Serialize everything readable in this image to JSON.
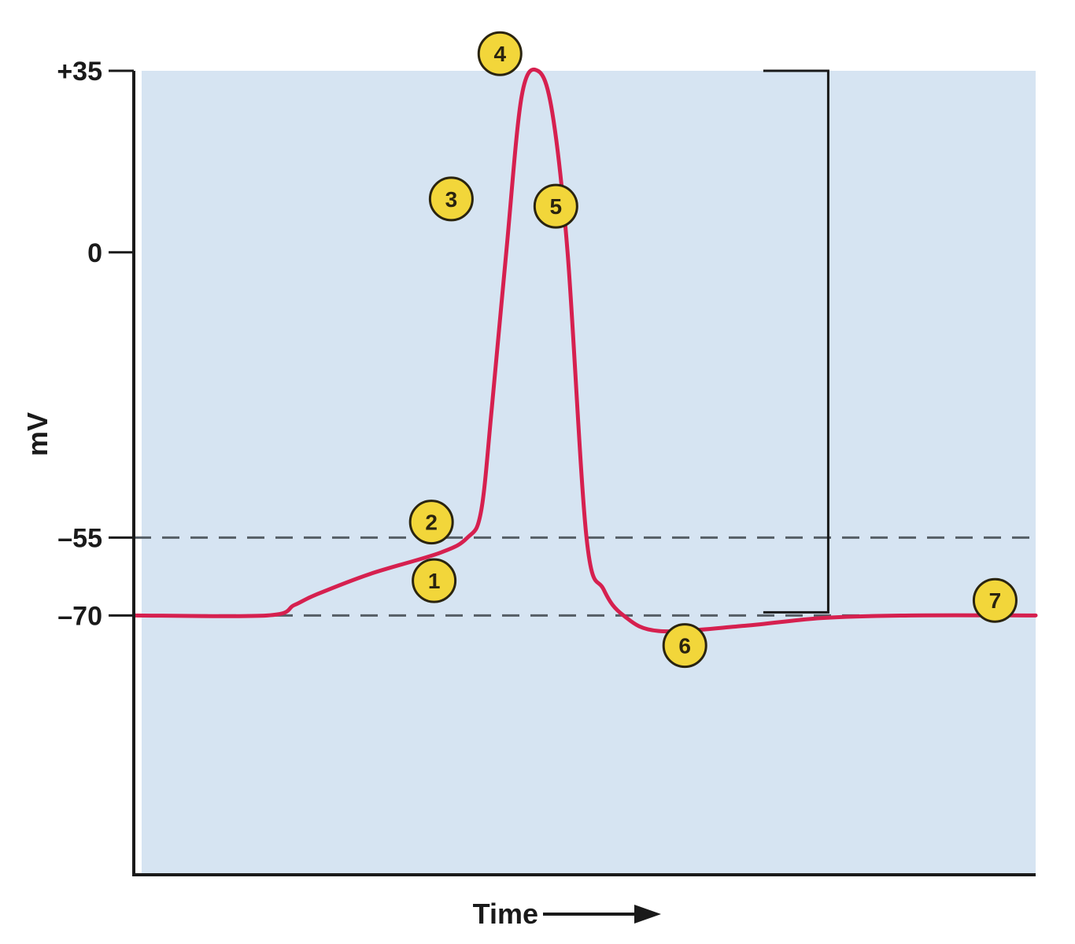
{
  "chart_data": {
    "type": "line",
    "xlabel": "Time",
    "ylabel": "mV",
    "x_axis_arrow": true,
    "ylim": [
      -120,
      35
    ],
    "xlim": [
      0,
      100
    ],
    "y_ticks": [
      {
        "value": 35,
        "label": "+35"
      },
      {
        "value": 0,
        "label": "0"
      },
      {
        "value": -55,
        "label": "–55"
      },
      {
        "value": -70,
        "label": "–70"
      }
    ],
    "reference_lines": [
      {
        "value": -55,
        "style": "dashed"
      },
      {
        "value": -70,
        "style": "dashed"
      }
    ],
    "grid": false,
    "legend": "none",
    "series": [
      {
        "color": "#d6204f",
        "points": [
          {
            "x": 0,
            "y": -70
          },
          {
            "x": 14.8,
            "y": -70
          },
          {
            "x": 17.8,
            "y": -68
          },
          {
            "x": 20.2,
            "y": -66
          },
          {
            "x": 26.2,
            "y": -62
          },
          {
            "x": 34,
            "y": -57.9
          },
          {
            "x": 37,
            "y": -55
          },
          {
            "x": 38.5,
            "y": -50
          },
          {
            "x": 39.7,
            "y": -30
          },
          {
            "x": 41.3,
            "y": 0
          },
          {
            "x": 43,
            "y": 30
          },
          {
            "x": 44.8,
            "y": 35
          },
          {
            "x": 46.4,
            "y": 27
          },
          {
            "x": 48.1,
            "y": 0
          },
          {
            "x": 50.2,
            "y": -55
          },
          {
            "x": 52.1,
            "y": -65
          },
          {
            "x": 54.3,
            "y": -70
          },
          {
            "x": 58.2,
            "y": -73
          },
          {
            "x": 67.7,
            "y": -72
          },
          {
            "x": 76.3,
            "y": -70.5
          },
          {
            "x": 86.2,
            "y": -70
          },
          {
            "x": 100,
            "y": -70
          }
        ]
      }
    ],
    "markers": [
      {
        "label": "1",
        "x": 33.3,
        "y": -63.3
      },
      {
        "label": "2",
        "x": 33,
        "y": -52
      },
      {
        "label": "3",
        "x": 35.2,
        "y": 10.3
      },
      {
        "label": "4",
        "x": 40.6,
        "y": 38.3
      },
      {
        "label": "5",
        "x": 46.8,
        "y": 8.9
      },
      {
        "label": "6",
        "x": 61.1,
        "y": -75.8
      },
      {
        "label": "7",
        "x": 95.5,
        "y": -67.1
      }
    ],
    "bracket": {
      "x_start": 69.8,
      "x_end": 77,
      "y_top": 35,
      "y_bottom": -69.4
    }
  },
  "colors": {
    "plot_background": "#d6e4f2",
    "curve": "#d6204f",
    "axis": "#1a1a1a",
    "dashed_line": "#555e66",
    "marker_fill": "#f2d63a",
    "marker_stroke": "#2a2410"
  }
}
